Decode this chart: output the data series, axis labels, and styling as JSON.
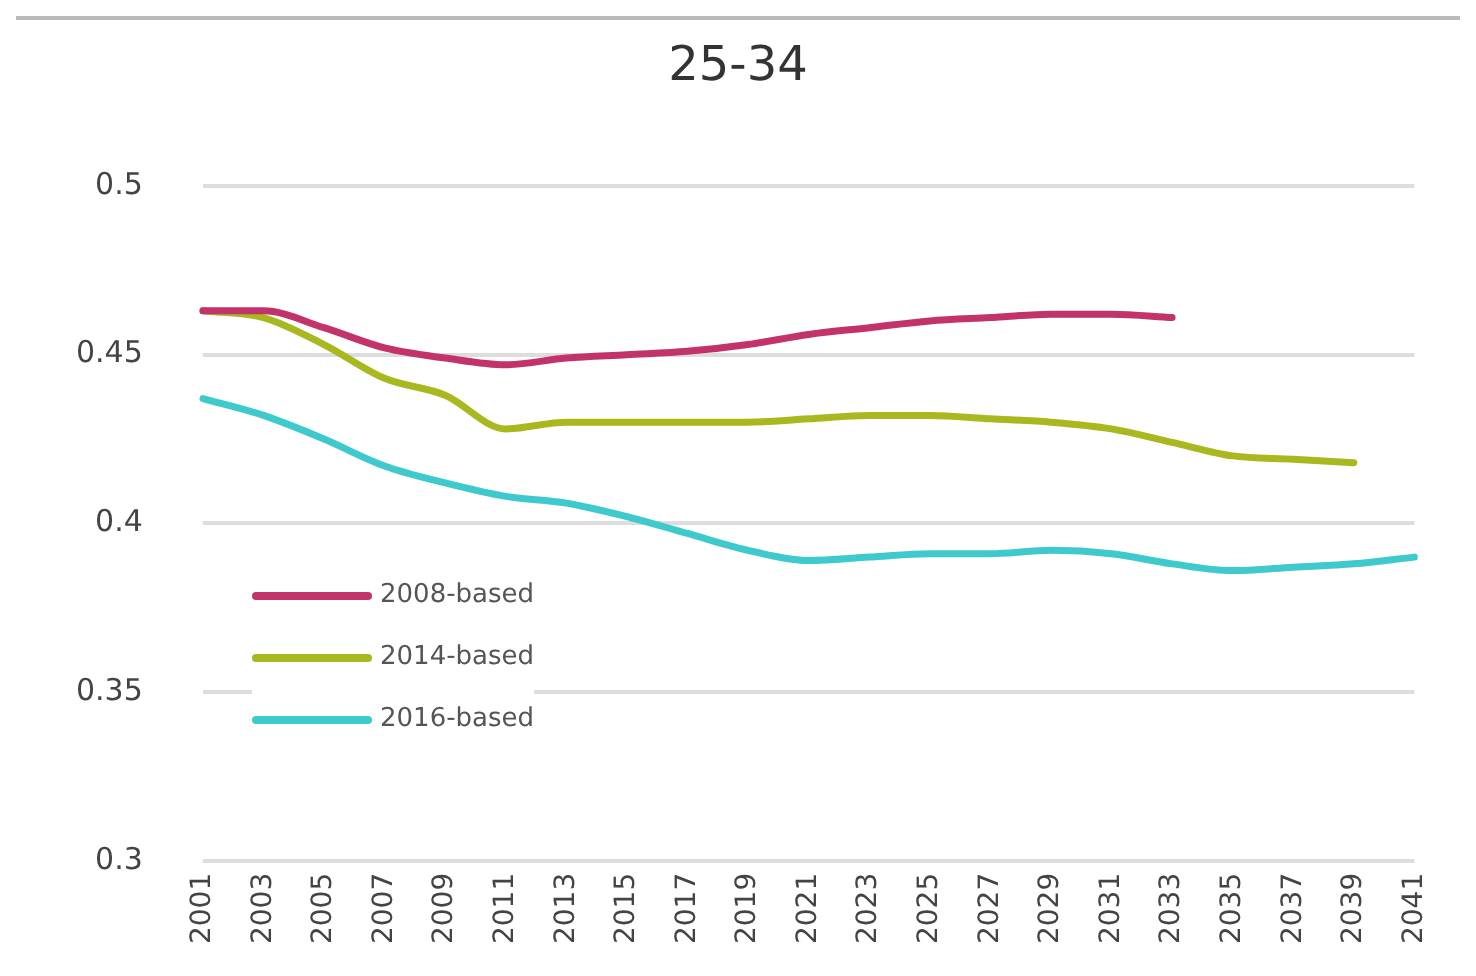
{
  "chart_data": {
    "type": "line",
    "title": "25-34",
    "categories": [
      "2001",
      "2003",
      "2005",
      "2007",
      "2009",
      "2011",
      "2013",
      "2015",
      "2017",
      "2019",
      "2021",
      "2023",
      "2025",
      "2027",
      "2029",
      "2031",
      "2033",
      "2035",
      "2037",
      "2039",
      "2041"
    ],
    "series": [
      {
        "name": "2008-based",
        "color": "#c2336b",
        "values": [
          0.463,
          0.463,
          0.458,
          0.452,
          0.449,
          0.447,
          0.449,
          0.45,
          0.451,
          0.453,
          0.456,
          0.458,
          0.46,
          0.461,
          0.462,
          0.462,
          0.461,
          null,
          null,
          null,
          null
        ]
      },
      {
        "name": "2014-based",
        "color": "#a8b81e",
        "values": [
          0.463,
          0.461,
          0.453,
          0.443,
          0.438,
          0.428,
          0.43,
          0.43,
          0.43,
          0.43,
          0.431,
          0.432,
          0.432,
          0.431,
          0.43,
          0.428,
          0.424,
          0.42,
          0.419,
          0.418,
          null
        ]
      },
      {
        "name": "2016-based",
        "color": "#3ec9cc",
        "values": [
          0.437,
          0.432,
          0.425,
          0.417,
          0.412,
          0.408,
          0.406,
          0.402,
          0.397,
          0.392,
          0.389,
          0.39,
          0.391,
          0.391,
          0.392,
          0.391,
          0.388,
          0.386,
          0.387,
          0.388,
          0.39
        ]
      }
    ],
    "ylim": [
      0.3,
      0.5
    ],
    "yticks": [
      0.3,
      0.35,
      0.4,
      0.45,
      0.5
    ],
    "grid": "y",
    "legend": "bottom left",
    "marker": "none",
    "line_style": "solid"
  }
}
